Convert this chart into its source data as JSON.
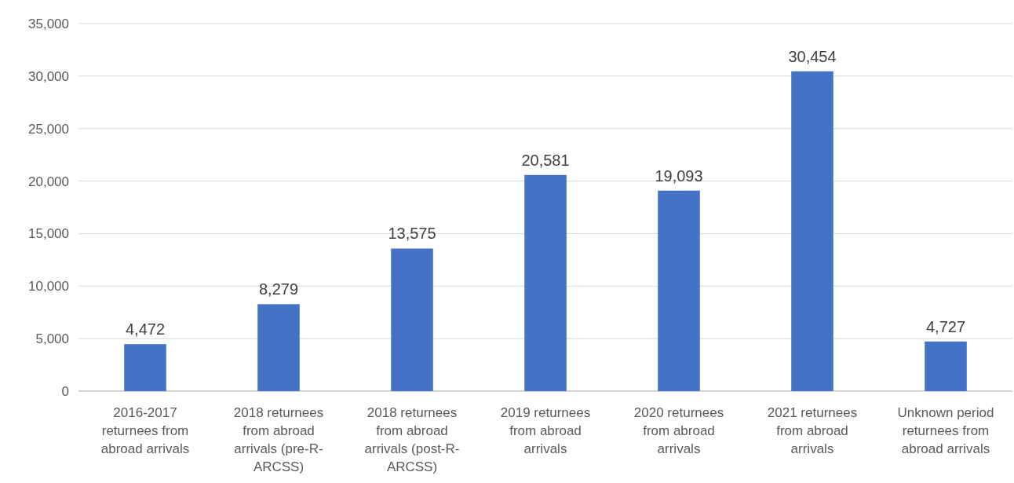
{
  "chart_data": {
    "type": "bar",
    "categories": [
      "2016-2017 returnees from abroad arrivals",
      "2018 returnees from abroad arrivals (pre-R-ARCSS)",
      "2018 returnees from abroad arrivals (post-R-ARCSS)",
      "2019 returnees from abroad arrivals",
      "2020 returnees from abroad arrivals",
      "2021 returnees from abroad arrivals",
      "Unknown period returnees from abroad arrivals"
    ],
    "values": [
      4472,
      8279,
      13575,
      20581,
      19093,
      30454,
      4727
    ],
    "color": "#4472c4",
    "ylim": [
      0,
      35000
    ],
    "yticks": [
      {
        "value": 0,
        "label": "0"
      },
      {
        "value": 5000,
        "label": "5,000"
      },
      {
        "value": 10000,
        "label": "10,000"
      },
      {
        "value": 15000,
        "label": "15,000"
      },
      {
        "value": 20000,
        "label": "20,000"
      },
      {
        "value": 25000,
        "label": "25,000"
      },
      {
        "value": 30000,
        "label": "30,000"
      },
      {
        "value": 35000,
        "label": "35,000"
      }
    ],
    "value_labels": [
      "4,472",
      "8,279",
      "13,575",
      "20,581",
      "19,093",
      "30,454",
      "4,727"
    ],
    "grid": true
  }
}
